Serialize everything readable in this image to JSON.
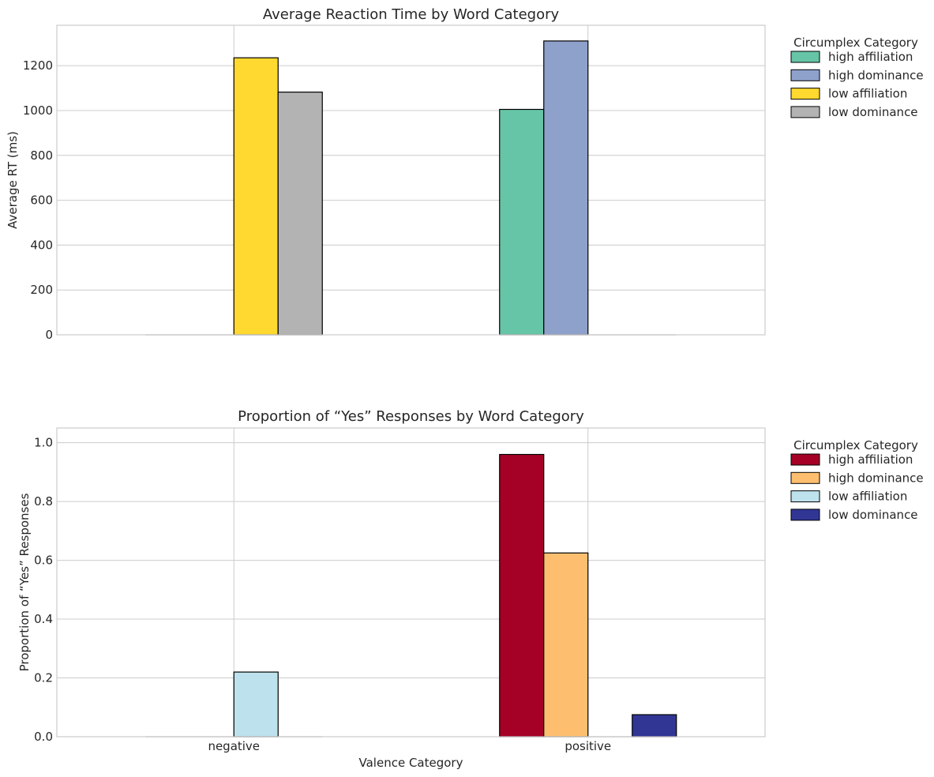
{
  "chart_data": [
    {
      "type": "bar",
      "title": "Average Reaction Time by Word Category",
      "xlabel": "",
      "ylabel": "Average RT (ms)",
      "categories": [
        "negative",
        "positive"
      ],
      "show_x_tick_labels": false,
      "ylim": [
        0,
        1380
      ],
      "yticks": [
        0,
        200,
        400,
        600,
        800,
        1000,
        1200
      ],
      "grid": true,
      "legend": {
        "title": "Circumplex Category",
        "placement": "outside-right-top"
      },
      "series": [
        {
          "name": "high affiliation",
          "color": "#66c5a6",
          "values": [
            0,
            1005
          ]
        },
        {
          "name": "high dominance",
          "color": "#8ea1cb",
          "values": [
            0,
            1310
          ]
        },
        {
          "name": "low affiliation",
          "color": "#ffd92f",
          "values": [
            1235,
            0
          ]
        },
        {
          "name": "low dominance",
          "color": "#b3b3b3",
          "values": [
            1082,
            0
          ]
        }
      ]
    },
    {
      "type": "bar",
      "title": "Proportion of “Yes” Responses by Word Category",
      "xlabel": "Valence Category",
      "ylabel": "Proportion of “Yes” Responses",
      "categories": [
        "negative",
        "positive"
      ],
      "show_x_tick_labels": true,
      "ylim": [
        0,
        1.05
      ],
      "yticks": [
        0.0,
        0.2,
        0.4,
        0.6,
        0.8,
        1.0
      ],
      "grid": true,
      "legend": {
        "title": "Circumplex Category",
        "placement": "outside-right-top"
      },
      "series": [
        {
          "name": "high affiliation",
          "color": "#a50026",
          "values": [
            0,
            0.96
          ]
        },
        {
          "name": "high dominance",
          "color": "#fdbf6f",
          "values": [
            0,
            0.625
          ]
        },
        {
          "name": "low affiliation",
          "color": "#bde2ed",
          "values": [
            0.22,
            0
          ]
        },
        {
          "name": "low dominance",
          "color": "#313695",
          "values": [
            0,
            0.075
          ]
        }
      ]
    }
  ]
}
